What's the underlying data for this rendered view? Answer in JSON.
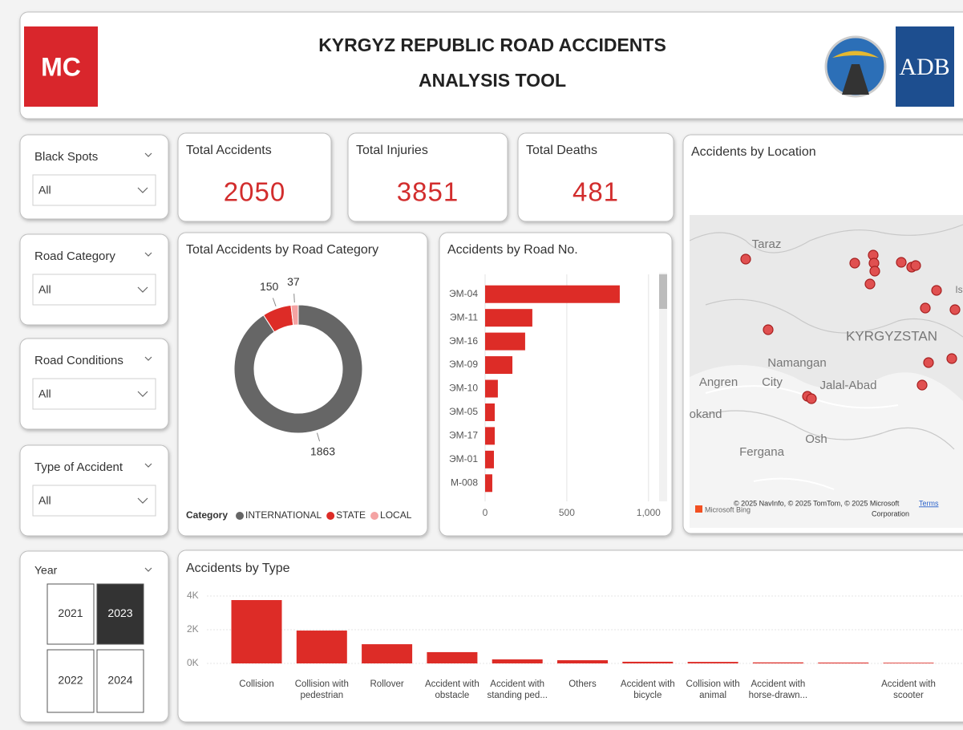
{
  "header": {
    "logo": "MC",
    "title_line1": "KYRGYZ REPUBLIC ROAD ACCIDENTS",
    "title_line2": "ANALYSIS TOOL",
    "partner": "ADB"
  },
  "slicers": [
    {
      "label": "Black Spots",
      "value": "All"
    },
    {
      "label": "Road Category",
      "value": "All"
    },
    {
      "label": "Road Conditions",
      "value": "All"
    },
    {
      "label": "Type of Accident",
      "value": "All"
    }
  ],
  "year_slicer": {
    "label": "Year",
    "options": [
      "2021",
      "2023",
      "2022",
      "2024"
    ],
    "selected": "2023"
  },
  "kpis": [
    {
      "label": "Total Accidents",
      "value": 2050
    },
    {
      "label": "Total Injuries",
      "value": 3851
    },
    {
      "label": "Total Deaths",
      "value": 481
    }
  ],
  "map": {
    "title": "Accidents by Location",
    "places": [
      "Taraz",
      "KYRGYZSTAN",
      "Namangan",
      "City",
      "Angren",
      "Jalal-Abad",
      "okand",
      "Fergana",
      "Osh",
      "Is"
    ],
    "attribution_line1": "© 2025 NavInfo, © 2025 TomTom, © 2025 Microsoft",
    "attribution_line2": "Corporation",
    "terms": "Terms",
    "provider": "Microsoft Bing"
  },
  "chart_data": [
    {
      "type": "pie",
      "donut": true,
      "title": "Total Accidents by Road Category",
      "legend_title": "Category",
      "categories": [
        "INTERNATIONAL",
        "STATE",
        "LOCAL"
      ],
      "values": [
        1863,
        150,
        37
      ],
      "colors": [
        "#666666",
        "#dd2c27",
        "#f4a3a3"
      ]
    },
    {
      "type": "bar",
      "orientation": "horizontal",
      "title": "Accidents by Road No.",
      "categories": [
        "ЭМ-04",
        "ЭМ-11",
        "ЭМ-16",
        "ЭМ-09",
        "ЭМ-10",
        "ЭМ-05",
        "ЭМ-17",
        "ЭМ-01",
        "М-008"
      ],
      "values": [
        824,
        289,
        245,
        167,
        78,
        59,
        59,
        54,
        44
      ],
      "color": "#dd2c27",
      "xlim": [
        0,
        1050
      ],
      "xticks": [
        0,
        500,
        {
          "value": 1000,
          "label": "1,000"
        }
      ],
      "grid": true
    },
    {
      "type": "bar",
      "orientation": "vertical",
      "title": "Accidents by Type",
      "categories": [
        "Collision",
        "Collision with pedestrian",
        "Rollover",
        "Accident with obstacle",
        "Accident with standing ped...",
        "Others",
        "Accident with bicycle",
        "Collision with animal",
        "Accident with horse-drawn...",
        null,
        "Accident with scooter"
      ],
      "values": [
        3760,
        1950,
        1140,
        670,
        240,
        190,
        100,
        90,
        60,
        50,
        40
      ],
      "color": "#dd2c27",
      "ylim": [
        0,
        4000
      ],
      "yticks": [
        {
          "value": 0,
          "label": "0K"
        },
        {
          "value": 2000,
          "label": "2K"
        },
        {
          "value": 4000,
          "label": "4K"
        }
      ],
      "grid": true
    }
  ]
}
